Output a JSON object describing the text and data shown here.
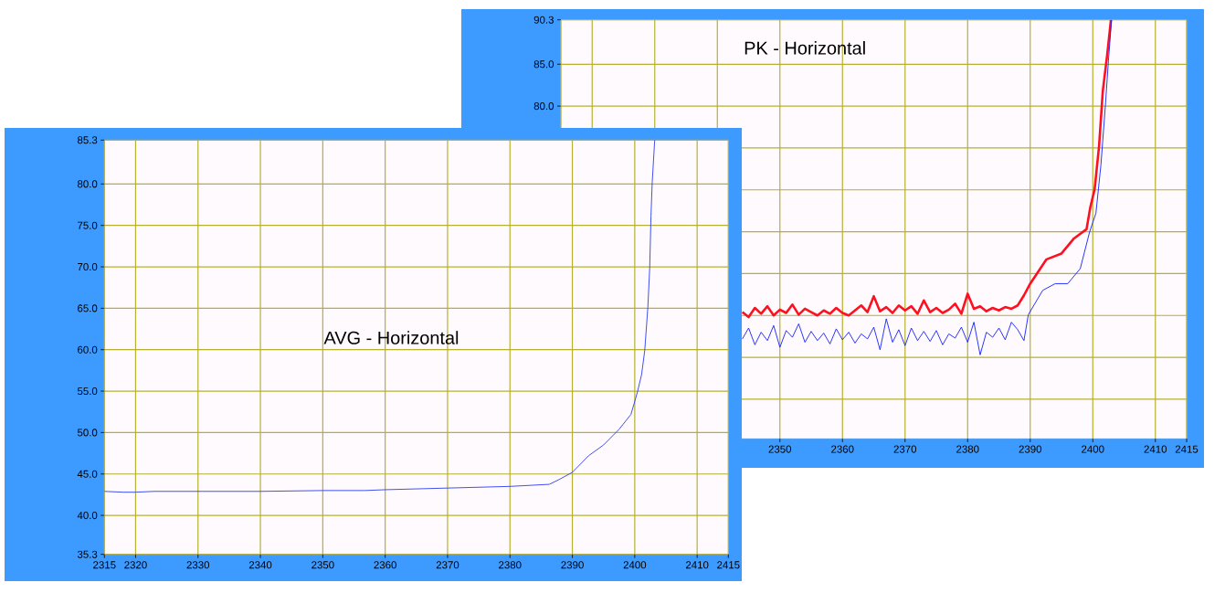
{
  "chart_data": [
    {
      "type": "line",
      "title": "AVG - Horizontal",
      "xlim": [
        2315,
        2415
      ],
      "ylim": [
        35.3,
        85.3
      ],
      "xticks": [
        2315,
        2320,
        2330,
        2340,
        2350,
        2360,
        2370,
        2380,
        2390,
        2400,
        2410,
        2415
      ],
      "yticks": [
        35.3,
        {
          "value": 40,
          "label": "40.0"
        },
        {
          "value": 45,
          "label": "45.0"
        },
        {
          "value": 50,
          "label": "50.0"
        },
        {
          "value": 55,
          "label": "55.0"
        },
        {
          "value": 60,
          "label": "60.0"
        },
        {
          "value": 65,
          "label": "65.0"
        },
        {
          "value": 70,
          "label": "70.0"
        },
        {
          "value": 75,
          "label": "75.0"
        },
        {
          "value": 80,
          "label": "80.0"
        },
        85.3
      ],
      "grid": true,
      "series": [
        {
          "color": "#2a3cf0",
          "x": [
            2315,
            2318,
            2320,
            2323,
            2330,
            2340,
            2350,
            2356.7,
            2360,
            2370,
            2380,
            2386.3,
            2387.8,
            2390,
            2392.6,
            2395,
            2397.5,
            2399.4,
            2400.4,
            2401.1,
            2401.6,
            2402.1,
            2402.4,
            2402.6,
            2402.8,
            2403.2
          ],
          "values": [
            42.9,
            42.8,
            42.8,
            42.9,
            42.9,
            42.9,
            43.0,
            43.0,
            43.1,
            43.3,
            43.5,
            43.75,
            44.3,
            45.2,
            47.2,
            48.5,
            50.4,
            52.2,
            54.8,
            57.0,
            59.9,
            65.1,
            69.9,
            76.1,
            80.2,
            85.3
          ]
        }
      ]
    },
    {
      "type": "line",
      "title": "PK - Horizontal",
      "xlim": [
        2315,
        2415
      ],
      "ylim": [
        40.3,
        90.3
      ],
      "xticks": [
        {
          "value": 2315,
          "label": null
        },
        {
          "value": 2320,
          "label": null
        },
        {
          "value": 2330,
          "label": null
        },
        {
          "value": 2340,
          "label": null
        },
        2350,
        2360,
        2370,
        2380,
        2390,
        2400,
        2410,
        2415
      ],
      "yticks": [
        {
          "value": 45,
          "label": null
        },
        {
          "value": 50,
          "label": null
        },
        {
          "value": 55,
          "label": null
        },
        {
          "value": 60,
          "label": null
        },
        {
          "value": 65,
          "label": null
        },
        {
          "value": 70,
          "label": null
        },
        {
          "value": 75,
          "label": null
        },
        {
          "value": 80,
          "label": "80.0"
        },
        {
          "value": 85,
          "label": "85.0"
        },
        90.3
      ],
      "grid": true,
      "series": [
        {
          "color": "#ff1020",
          "x": [
            2344,
            2345,
            2346,
            2347,
            2348,
            2349,
            2350,
            2351,
            2352,
            2353,
            2354,
            2355,
            2356,
            2357,
            2358,
            2359,
            2360,
            2361,
            2362,
            2363,
            2364,
            2365,
            2366,
            2367,
            2368,
            2369,
            2370,
            2371,
            2372,
            2373,
            2374,
            2375,
            2376,
            2377,
            2378,
            2379,
            2380,
            2381,
            2382,
            2383,
            2384,
            2385,
            2386,
            2387,
            2388,
            2389,
            2390,
            2392.6,
            2395,
            2397,
            2399,
            2399.6,
            2400.3,
            2401,
            2401.6,
            2402.3,
            2402.9
          ],
          "values": [
            55.4,
            54.8,
            55.9,
            55.2,
            56.1,
            55.0,
            55.7,
            55.3,
            56.3,
            55.1,
            55.8,
            55.4,
            55.0,
            55.6,
            55.2,
            55.9,
            55.3,
            55.0,
            55.6,
            56.2,
            55.4,
            57.3,
            55.5,
            56.0,
            55.3,
            56.2,
            55.6,
            56.1,
            55.2,
            56.8,
            55.4,
            55.9,
            55.3,
            55.7,
            56.4,
            55.2,
            57.6,
            55.8,
            56.1,
            55.5,
            55.9,
            55.6,
            56.0,
            55.8,
            56.2,
            57.4,
            58.8,
            61.7,
            62.4,
            64.2,
            65.3,
            67.9,
            70.1,
            75.2,
            81.8,
            86.1,
            90.3
          ]
        },
        {
          "color": "#1020ff",
          "x": [
            2344,
            2345,
            2346,
            2347,
            2348,
            2349,
            2350,
            2351,
            2352,
            2353,
            2354,
            2355,
            2356,
            2357,
            2358,
            2359,
            2360,
            2361,
            2362,
            2363,
            2364,
            2365,
            2366,
            2367,
            2368,
            2369,
            2370,
            2371,
            2372,
            2373,
            2374,
            2375,
            2376,
            2377,
            2378,
            2379,
            2380,
            2381,
            2382,
            2383,
            2384,
            2385,
            2386,
            2387,
            2388,
            2389,
            2389.7,
            2392,
            2394,
            2396,
            2398,
            2399.5,
            2400.5,
            2401.3,
            2402,
            2402.5,
            2403
          ],
          "values": [
            52.2,
            53.5,
            51.5,
            53.0,
            52.0,
            53.8,
            51.2,
            53.2,
            52.4,
            54.0,
            51.8,
            53.1,
            52.0,
            52.9,
            51.6,
            53.4,
            52.1,
            53.0,
            51.7,
            52.8,
            52.2,
            53.6,
            50.9,
            54.6,
            51.8,
            53.3,
            51.4,
            53.5,
            52.0,
            53.1,
            51.9,
            53.2,
            51.5,
            52.8,
            52.3,
            53.6,
            51.8,
            54.2,
            50.3,
            53.0,
            52.4,
            53.5,
            52.1,
            54.2,
            53.3,
            52.0,
            55.1,
            58.0,
            58.8,
            58.8,
            60.6,
            65.0,
            67.2,
            73.0,
            79.9,
            85.4,
            90.3
          ]
        }
      ]
    }
  ]
}
